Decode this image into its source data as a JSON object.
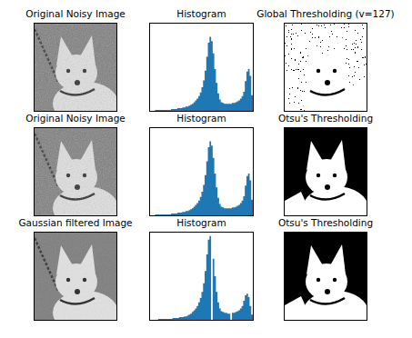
{
  "chart_data": [
    {
      "type": "image",
      "title": "Original Noisy Image"
    },
    {
      "type": "histogram",
      "title": "Histogram",
      "color": "#1f77b4",
      "tick_labels": false,
      "xlim": [
        0,
        256
      ],
      "ylim": [
        0,
        100
      ],
      "bins": [
        0,
        4,
        8,
        12,
        16,
        20,
        24,
        28,
        32,
        36,
        40,
        44,
        48,
        52,
        56,
        60,
        64,
        68,
        72,
        76,
        80,
        84,
        88,
        92,
        96,
        100,
        104,
        108,
        112,
        116,
        120,
        124,
        128,
        132,
        136,
        140,
        144,
        148,
        152,
        156,
        160,
        164,
        168,
        172,
        176,
        180,
        184,
        188,
        192,
        196,
        200,
        204,
        208,
        212,
        216,
        220,
        224,
        228,
        232,
        236,
        240,
        244,
        248,
        252,
        256
      ],
      "values": [
        0,
        0,
        0,
        1,
        1,
        1,
        1,
        1,
        1,
        1,
        1,
        1,
        1,
        2,
        2,
        2,
        2,
        3,
        3,
        3,
        4,
        4,
        5,
        5,
        6,
        7,
        8,
        10,
        12,
        14,
        17,
        21,
        27,
        35,
        46,
        62,
        78,
        85,
        80,
        66,
        48,
        32,
        20,
        13,
        10,
        9,
        8,
        8,
        8,
        8,
        8,
        9,
        9,
        10,
        11,
        12,
        14,
        17,
        22,
        34,
        45,
        48,
        40,
        18
      ]
    },
    {
      "type": "image",
      "title": "Global Thresholding (v=127)"
    },
    {
      "type": "image",
      "title": "Original Noisy Image"
    },
    {
      "type": "histogram",
      "title": "Histogram",
      "color": "#1f77b4",
      "tick_labels": false,
      "xlim": [
        0,
        256
      ],
      "ylim": [
        0,
        100
      ],
      "bins": [
        0,
        4,
        8,
        12,
        16,
        20,
        24,
        28,
        32,
        36,
        40,
        44,
        48,
        52,
        56,
        60,
        64,
        68,
        72,
        76,
        80,
        84,
        88,
        92,
        96,
        100,
        104,
        108,
        112,
        116,
        120,
        124,
        128,
        132,
        136,
        140,
        144,
        148,
        152,
        156,
        160,
        164,
        168,
        172,
        176,
        180,
        184,
        188,
        192,
        196,
        200,
        204,
        208,
        212,
        216,
        220,
        224,
        228,
        232,
        236,
        240,
        244,
        248,
        252,
        256
      ],
      "values": [
        0,
        0,
        0,
        1,
        1,
        1,
        1,
        1,
        1,
        1,
        1,
        1,
        1,
        2,
        2,
        2,
        2,
        3,
        3,
        3,
        4,
        4,
        5,
        5,
        6,
        7,
        8,
        10,
        12,
        14,
        17,
        21,
        27,
        35,
        46,
        62,
        78,
        85,
        80,
        66,
        48,
        32,
        20,
        13,
        10,
        9,
        8,
        8,
        8,
        8,
        8,
        9,
        9,
        10,
        11,
        12,
        14,
        17,
        22,
        34,
        45,
        48,
        40,
        18
      ]
    },
    {
      "type": "image",
      "title": "Otsu's Thresholding"
    },
    {
      "type": "image",
      "title": "Gaussian filtered Image"
    },
    {
      "type": "histogram",
      "title": "Histogram",
      "color": "#1f77b4",
      "tick_labels": false,
      "xlim": [
        0,
        256
      ],
      "ylim": [
        0,
        100
      ],
      "bins": [
        0,
        4,
        8,
        12,
        16,
        20,
        24,
        28,
        32,
        36,
        40,
        44,
        48,
        52,
        56,
        60,
        64,
        68,
        72,
        76,
        80,
        84,
        88,
        92,
        96,
        100,
        104,
        108,
        112,
        116,
        120,
        124,
        128,
        132,
        136,
        140,
        144,
        148,
        152,
        156,
        160,
        164,
        168,
        172,
        176,
        180,
        184,
        188,
        192,
        196,
        200,
        204,
        208,
        212,
        216,
        220,
        224,
        228,
        232,
        236,
        240,
        244,
        248,
        252,
        256
      ],
      "values": [
        0,
        0,
        0,
        0,
        0,
        1,
        1,
        1,
        1,
        1,
        1,
        1,
        1,
        1,
        2,
        2,
        2,
        2,
        3,
        3,
        3,
        4,
        4,
        5,
        6,
        7,
        9,
        11,
        13,
        16,
        20,
        25,
        32,
        42,
        56,
        75,
        92,
        96,
        0,
        70,
        50,
        32,
        20,
        13,
        10,
        9,
        8,
        8,
        7,
        7,
        0,
        8,
        8,
        9,
        10,
        11,
        13,
        16,
        22,
        28,
        30,
        26,
        16,
        6
      ]
    },
    {
      "type": "image",
      "title": "Otsu's Thresholding"
    }
  ]
}
